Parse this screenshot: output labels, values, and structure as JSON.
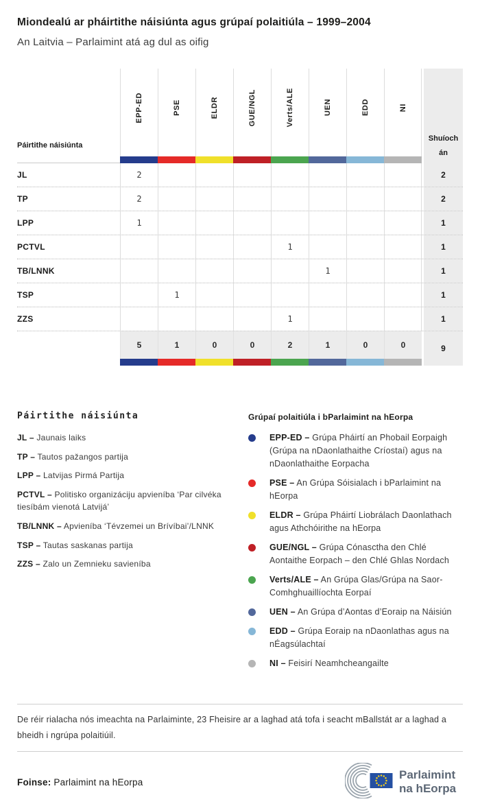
{
  "title": "Miondealú ar pháirtithe náisiúnta agus grúpaí polaitiúla – 1999–2004",
  "subtitle": "An Laitvia – Parlaimint atá ag dul as oifig",
  "table": {
    "row_header": "Páirtithe náisiúnta",
    "seats_header": "Shuíochán",
    "groups": [
      {
        "label": "EPP-ED",
        "color": "#253c8c"
      },
      {
        "label": "PSE",
        "color": "#e52a28"
      },
      {
        "label": "ELDR",
        "color": "#f0e02a"
      },
      {
        "label": "GUE/NGL",
        "color": "#bf2026"
      },
      {
        "label": "Verts/ALE",
        "color": "#4ba54f"
      },
      {
        "label": "UEN",
        "color": "#52689b"
      },
      {
        "label": "EDD",
        "color": "#86b7d7"
      },
      {
        "label": "NI",
        "color": "#b5b5b5"
      }
    ],
    "rows": [
      {
        "party": "JL",
        "cells": [
          "2",
          "",
          "",
          "",
          "",
          "",
          "",
          ""
        ],
        "seats": "2"
      },
      {
        "party": "TP",
        "cells": [
          "2",
          "",
          "",
          "",
          "",
          "",
          "",
          ""
        ],
        "seats": "2"
      },
      {
        "party": "LPP",
        "cells": [
          "1",
          "",
          "",
          "",
          "",
          "",
          "",
          ""
        ],
        "seats": "1"
      },
      {
        "party": "PCTVL",
        "cells": [
          "",
          "",
          "",
          "",
          "1",
          "",
          "",
          ""
        ],
        "seats": "1"
      },
      {
        "party": "TB/LNNK",
        "cells": [
          "",
          "",
          "",
          "",
          "",
          "1",
          "",
          ""
        ],
        "seats": "1"
      },
      {
        "party": "TSP",
        "cells": [
          "",
          "1",
          "",
          "",
          "",
          "",
          "",
          ""
        ],
        "seats": "1"
      },
      {
        "party": "ZZS",
        "cells": [
          "",
          "",
          "",
          "",
          "1",
          "",
          "",
          ""
        ],
        "seats": "1"
      }
    ],
    "totals": {
      "cells": [
        "5",
        "1",
        "0",
        "0",
        "2",
        "1",
        "0",
        "0"
      ],
      "seats": "9"
    }
  },
  "party_legend": {
    "title": "Páirtithe náisiúnta",
    "items": [
      {
        "abbr": "JL –",
        "desc": "Jaunais laiks"
      },
      {
        "abbr": "TP –",
        "desc": "Tautos pažangos partija"
      },
      {
        "abbr": "LPP –",
        "desc": "Latvijas Pirmá Partija"
      },
      {
        "abbr": "PCTVL –",
        "desc": "Politisko organizáciju apvieníba ‘Par cilvéka tiesíbám vienotá Latvijá’"
      },
      {
        "abbr": "TB/LNNK –",
        "desc": "Apvieníba ‘Tévzemei un Brívíbai’/LNNK"
      },
      {
        "abbr": "TSP –",
        "desc": "Tautas saskanas partija"
      },
      {
        "abbr": "ZZS –",
        "desc": "Zalo un Zemnieku savieníba"
      }
    ]
  },
  "group_legend": {
    "title": "Grúpaí polaitiúla i bParlaimint na hEorpa",
    "items": [
      {
        "abbr": "EPP-ED –",
        "color": "#253c8c",
        "desc": "Grúpa Pháirtí an Phobail Eorpaigh (Grúpa na nDaonlathaithe Críostaí) agus na nDaonlathaithe Eorpacha"
      },
      {
        "abbr": "PSE –",
        "color": "#e52a28",
        "desc": "An Grúpa Sóisialach i bParlaimint na hEorpa"
      },
      {
        "abbr": "ELDR –",
        "color": "#f0e02a",
        "desc": "Grúpa Pháirtí Liobrálach Daonlathach agus Athchóirithe na hEorpa"
      },
      {
        "abbr": "GUE/NGL –",
        "color": "#bf2026",
        "desc": "Grúpa Cónasctha den Chlé Aontaithe Eorpach – den Chlé Ghlas Nordach"
      },
      {
        "abbr": "Verts/ALE –",
        "color": "#4ba54f",
        "desc": "An Grúpa Glas/Grúpa na Saor-Comhghuaillíochta Eorpaí"
      },
      {
        "abbr": "UEN –",
        "color": "#52689b",
        "desc": "An Grúpa d’Aontas d’Eoraip na Náisiún"
      },
      {
        "abbr": "EDD –",
        "color": "#86b7d7",
        "desc": "Grúpa Eoraip na nDaonlathas agus na nÉagsúlachtaí"
      },
      {
        "abbr": "NI –",
        "color": "#b5b5b5",
        "desc": "Feisirí Neamhcheangailte"
      }
    ]
  },
  "footer": {
    "note": "De réir rialacha nós imeachta na Parlaiminte, 23 Fheisire ar a laghad atá tofa i seacht mBallstát ar a laghad a bheidh i ngrúpa polaitiúil.",
    "source_label": "Foinse:",
    "source_value": "Parlaimint na hEorpa",
    "logo_line1": "Parlaimint",
    "logo_line2": "na hEorpa"
  },
  "chart_data": {
    "type": "table",
    "title": "Miondealú ar pháirtithe náisiúnta agus grúpaí polaitiúla – 1999–2004",
    "subtitle": "An Laitvia – Parlaimint atá ag dul as oifig",
    "columns": [
      "EPP-ED",
      "PSE",
      "ELDR",
      "GUE/NGL",
      "Verts/ALE",
      "UEN",
      "EDD",
      "NI"
    ],
    "rows": [
      {
        "party": "JL",
        "values": [
          2,
          null,
          null,
          null,
          null,
          null,
          null,
          null
        ],
        "seats": 2
      },
      {
        "party": "TP",
        "values": [
          2,
          null,
          null,
          null,
          null,
          null,
          null,
          null
        ],
        "seats": 2
      },
      {
        "party": "LPP",
        "values": [
          1,
          null,
          null,
          null,
          null,
          null,
          null,
          null
        ],
        "seats": 1
      },
      {
        "party": "PCTVL",
        "values": [
          null,
          null,
          null,
          null,
          1,
          null,
          null,
          null
        ],
        "seats": 1
      },
      {
        "party": "TB/LNNK",
        "values": [
          null,
          null,
          null,
          null,
          null,
          1,
          null,
          null
        ],
        "seats": 1
      },
      {
        "party": "TSP",
        "values": [
          null,
          1,
          null,
          null,
          null,
          null,
          null,
          null
        ],
        "seats": 1
      },
      {
        "party": "ZZS",
        "values": [
          null,
          null,
          null,
          null,
          1,
          null,
          null,
          null
        ],
        "seats": 1
      }
    ],
    "column_totals": [
      5,
      1,
      0,
      0,
      2,
      1,
      0,
      0
    ],
    "total_seats": 9,
    "group_colors": {
      "EPP-ED": "#253c8c",
      "PSE": "#e52a28",
      "ELDR": "#f0e02a",
      "GUE/NGL": "#bf2026",
      "Verts/ALE": "#4ba54f",
      "UEN": "#52689b",
      "EDD": "#86b7d7",
      "NI": "#b5b5b5"
    }
  }
}
